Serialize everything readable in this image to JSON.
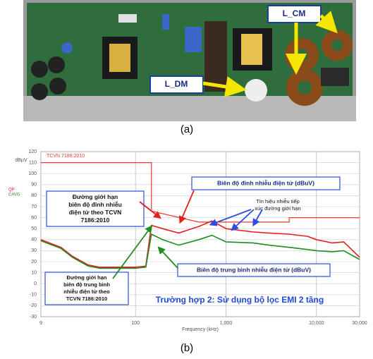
{
  "figure_a": {
    "labels": [
      "L_CM",
      "L_DM"
    ],
    "caption": "(a)"
  },
  "chart_data": {
    "type": "line",
    "ylabel": "dBµV",
    "xlabel": "Frequency (kHz)",
    "log_x": true,
    "grid": true,
    "xlim": [
      9,
      30000
    ],
    "ylim": [
      -30,
      120
    ],
    "xticks": [
      9,
      100,
      {
        "value": 1000,
        "label": "1,000"
      },
      {
        "value": 10000,
        "label": "10,000"
      },
      {
        "value": 30000,
        "label": "30,000"
      }
    ],
    "yticks": [
      120,
      110,
      100,
      90,
      80,
      70,
      60,
      50,
      40,
      30,
      20,
      10,
      0,
      -10,
      -20,
      -30
    ],
    "series": [
      {
        "name": "TCVN 7186:2010",
        "color": "#e8382e",
        "x": [
          9,
          150,
          150,
          500,
          500,
          5000,
          5000,
          30000
        ],
        "values": [
          110,
          110,
          66,
          56,
          56,
          56,
          60,
          60
        ]
      },
      {
        "name": "QP",
        "color": "#e81e1e",
        "x": [
          9,
          15,
          20,
          30,
          40,
          60,
          100,
          130,
          150,
          200,
          300,
          500,
          700,
          1000,
          2000,
          3000,
          5000,
          8000,
          10000,
          15000,
          20000,
          30000
        ],
        "values": [
          40,
          33,
          25,
          17,
          15,
          15,
          15,
          16,
          53,
          50,
          46,
          52,
          57,
          50,
          47,
          46,
          45,
          43,
          40,
          37,
          38,
          24
        ]
      },
      {
        "name": "CAVG",
        "color": "#1e8c1e",
        "x": [
          9,
          15,
          20,
          30,
          40,
          60,
          100,
          130,
          150,
          200,
          300,
          500,
          700,
          1000,
          2000,
          3000,
          5000,
          8000,
          10000,
          15000,
          20000,
          30000
        ],
        "values": [
          39,
          32,
          24,
          16,
          14,
          14,
          14,
          15,
          45,
          40,
          35,
          40,
          44,
          38,
          37,
          35,
          33,
          31,
          30,
          29,
          30,
          22
        ]
      }
    ],
    "annotations": {
      "peak": [
        "Biên độ đỉnh nhiễu điện tử (dBuV)"
      ],
      "peak_limit": [
        "Đường giới hạn",
        "biên độ đỉnh nhiễu",
        "điện tử theo TCVN",
        "7186:2010"
      ],
      "touch": [
        "Tín hiệu nhiễu tiếp",
        "xúc đường giới hạn"
      ],
      "average": [
        "Biên độ trung bình nhiễu điện tử (dBuV)"
      ],
      "average_limit": [
        "Đường giới hạn",
        "biên độ trung bình",
        "nhiễu điện tử theo",
        "TCVN 7186:2010"
      ],
      "case": [
        "Trường hợp 2: Sử dụng bộ lọc EMI 2 tầng"
      ]
    }
  },
  "caption_b": "(b)"
}
